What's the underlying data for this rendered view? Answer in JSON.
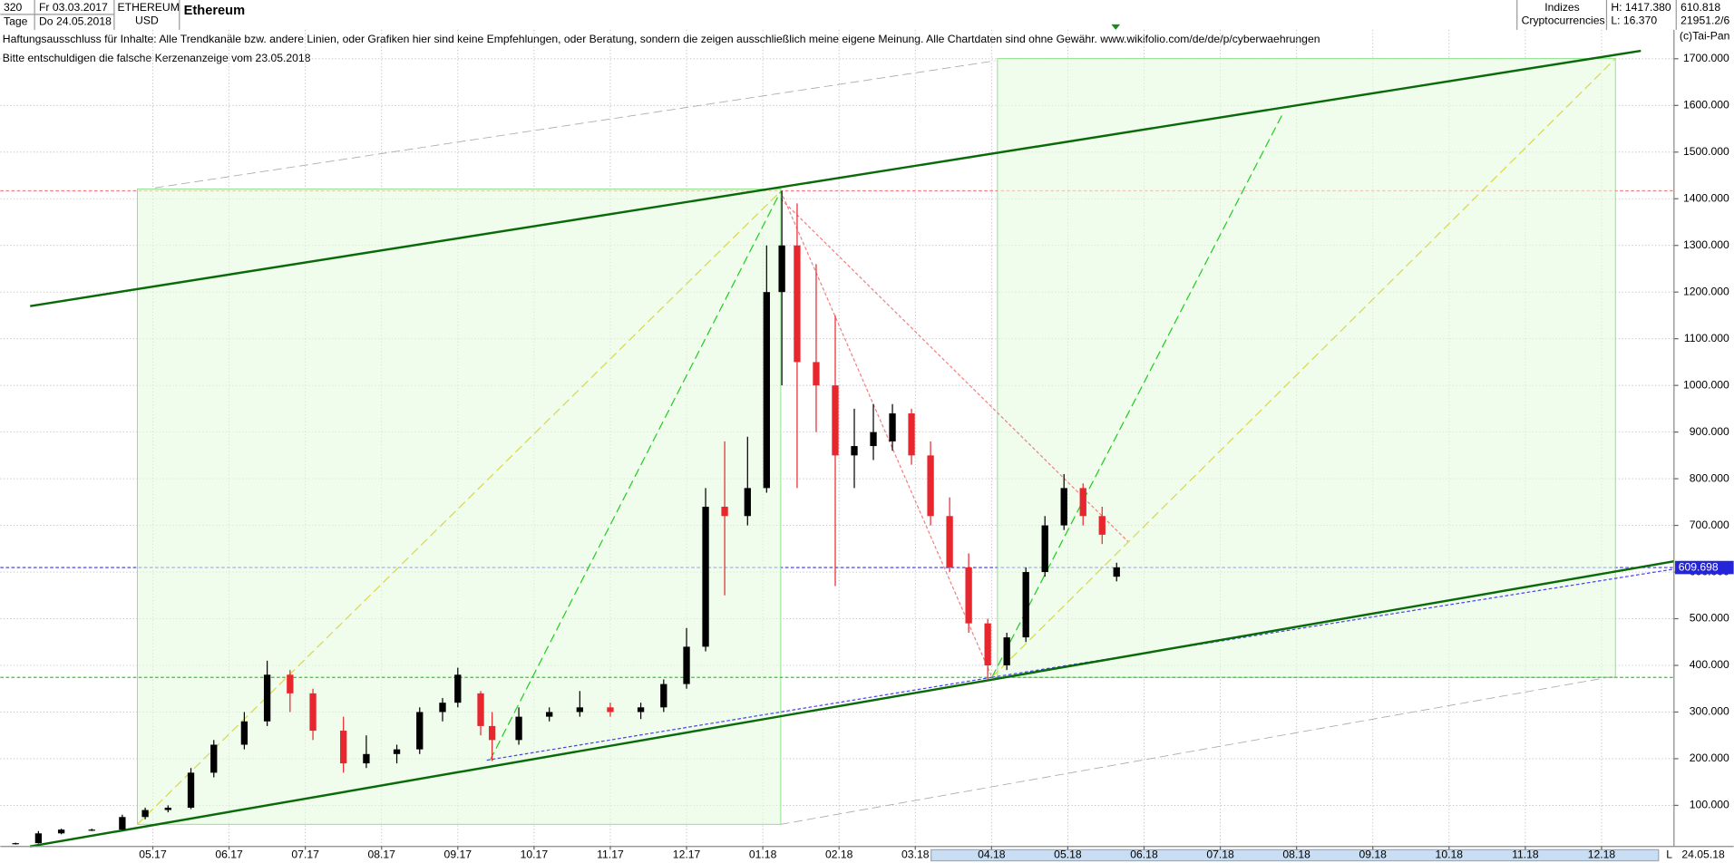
{
  "header": {
    "period": "320",
    "unit": "Tage",
    "from": "Fr 03.03.2017",
    "to": "Do 24.05.2018",
    "symbol": "ETHEREUM",
    "currency": "USD",
    "group": "Indizes",
    "subgroup": "Cryptocurrencies",
    "high": "H: 1417.380",
    "low": "L: 16.370",
    "last": "610.818",
    "volume": "21951.2/6",
    "copyright": "(c)Tai-Pan",
    "end_flag": "L",
    "end_date": "24.05.18"
  },
  "chart_data": {
    "type": "candlestick",
    "title": "Ethereum",
    "annotations": [
      "Haftungsausschluss für Inhalte: Alle Trendkanäle bzw. andere Linien, oder Grafiken hier sind keine Empfehlungen, oder Beratung, sondern die zeigen ausschließlich meine eigene Meinung. Alle Chartdaten sind ohne Gewähr.  www.wikifolio.com/de/de/p/cyberwaehrungen",
      "Bitte entschuldigen die falsche  Kerzenanzeige  vom 23.05.2018"
    ],
    "x": [
      0.2,
      0.5,
      0.8,
      1.2,
      1.6,
      1.9,
      2.2,
      2.5,
      2.8,
      3.2,
      3.5,
      3.8,
      4.1,
      4.5,
      4.8,
      5.2,
      5.5,
      5.8,
      6.0,
      6.3,
      6.45,
      6.8,
      7.2,
      7.6,
      8.0,
      8.4,
      8.7,
      9.0,
      9.25,
      9.5,
      9.8,
      10.05,
      10.25,
      10.45,
      10.7,
      10.95,
      11.2,
      11.45,
      11.7,
      11.95,
      12.2,
      12.45,
      12.7,
      12.95,
      13.2,
      13.45,
      13.7,
      13.95,
      14.2,
      14.45,
      14.64
    ],
    "open": [
      17,
      19,
      40,
      48,
      48,
      75,
      90,
      95,
      170,
      230,
      280,
      380,
      340,
      260,
      190,
      210,
      220,
      300,
      320,
      340,
      270,
      240,
      290,
      300,
      310,
      300,
      310,
      360,
      440,
      740,
      720,
      780,
      1200,
      1300,
      1050,
      1000,
      850,
      870,
      880,
      940,
      850,
      720,
      610,
      490,
      400,
      460,
      600,
      700,
      780,
      720,
      590
    ],
    "high": [
      20,
      45,
      50,
      50,
      80,
      95,
      100,
      180,
      240,
      300,
      410,
      390,
      350,
      290,
      250,
      230,
      310,
      330,
      395,
      345,
      300,
      310,
      310,
      345,
      320,
      320,
      370,
      480,
      780,
      880,
      890,
      1300,
      1417,
      1390,
      1260,
      1150,
      950,
      960,
      960,
      950,
      880,
      760,
      640,
      500,
      470,
      610,
      720,
      810,
      790,
      740,
      620
    ],
    "low": [
      16,
      18,
      38,
      45,
      47,
      70,
      85,
      92,
      160,
      220,
      270,
      300,
      240,
      170,
      180,
      190,
      210,
      280,
      310,
      250,
      195,
      230,
      280,
      290,
      290,
      285,
      300,
      350,
      430,
      550,
      700,
      770,
      1000,
      780,
      900,
      570,
      780,
      840,
      860,
      830,
      700,
      600,
      470,
      368,
      390,
      450,
      590,
      690,
      700,
      660,
      580
    ],
    "close": [
      19,
      40,
      48,
      48,
      75,
      90,
      95,
      170,
      230,
      280,
      380,
      340,
      260,
      190,
      210,
      220,
      300,
      320,
      380,
      270,
      240,
      290,
      300,
      310,
      300,
      310,
      360,
      440,
      740,
      720,
      780,
      1200,
      1300,
      1050,
      1000,
      850,
      870,
      900,
      940,
      850,
      720,
      610,
      490,
      400,
      460,
      600,
      700,
      780,
      720,
      680,
      610
    ],
    "up_color": "#000000",
    "down_color": "#e8262d",
    "last_price": {
      "value": 609.698,
      "label": "609.698"
    },
    "xlim": [
      0,
      21.95
    ],
    "xticks": [
      {
        "value": 2,
        "label": "05.17"
      },
      {
        "value": 3,
        "label": "06.17"
      },
      {
        "value": 4,
        "label": "07.17"
      },
      {
        "value": 5,
        "label": "08.17"
      },
      {
        "value": 6,
        "label": "09.17"
      },
      {
        "value": 7,
        "label": "10.17"
      },
      {
        "value": 8,
        "label": "11.17"
      },
      {
        "value": 9,
        "label": "12.17"
      },
      {
        "value": 10,
        "label": "01.18"
      },
      {
        "value": 11,
        "label": "02.18"
      },
      {
        "value": 12,
        "label": "03.18"
      },
      {
        "value": 13,
        "label": "04.18"
      },
      {
        "value": 14,
        "label": "05.18"
      },
      {
        "value": 15,
        "label": "06.18"
      },
      {
        "value": 16,
        "label": "07.18"
      },
      {
        "value": 17,
        "label": "08.18"
      },
      {
        "value": 18,
        "label": "09.18"
      },
      {
        "value": 19,
        "label": "10.18"
      },
      {
        "value": 20,
        "label": "11.18"
      },
      {
        "value": 21,
        "label": "12.18"
      }
    ],
    "ylim": [
      12,
      1762
    ],
    "yticks": [
      {
        "value": 100,
        "label": "100.000"
      },
      {
        "value": 200,
        "label": "200.000"
      },
      {
        "value": 300,
        "label": "300.000"
      },
      {
        "value": 400,
        "label": "400.000"
      },
      {
        "value": 500,
        "label": "500.000"
      },
      {
        "value": 600,
        "label": "600.000"
      },
      {
        "value": 700,
        "label": "700.000"
      },
      {
        "value": 800,
        "label": "800.000"
      },
      {
        "value": 900,
        "label": "900.000"
      },
      {
        "value": 1000,
        "label": "1000.000"
      },
      {
        "value": 1100,
        "label": "1100.000"
      },
      {
        "value": 1200,
        "label": "1200.000"
      },
      {
        "value": 1300,
        "label": "1300.000"
      },
      {
        "value": 1400,
        "label": "1400.000"
      },
      {
        "value": 1500,
        "label": "1500.000"
      },
      {
        "value": 1600,
        "label": "1600.000"
      },
      {
        "value": 1700,
        "label": "1700.000"
      }
    ],
    "grid": true
  }
}
